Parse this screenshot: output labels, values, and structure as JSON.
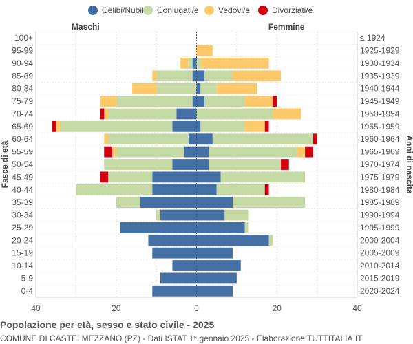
{
  "footer": {
    "title": "Popolazione per età, sesso e stato civile - 2025",
    "subtitle": "COMUNE DI CASTELMEZZANO (PZ) - Dati ISTAT 1° gennaio 2025 - Elaborazione TUTTITALIA.IT"
  },
  "chart_data": {
    "type": "bar",
    "orientation": "horizontal-population-pyramid",
    "left_label": "Maschi",
    "right_label": "Femmine",
    "ylabel_left": "Fasce di età",
    "ylabel_right": "Anni di nascita",
    "xlim": [
      -40,
      40
    ],
    "xticks": [
      -40,
      -20,
      0,
      20,
      40
    ],
    "xtick_labels": [
      "40",
      "20",
      "0",
      "20",
      "40"
    ],
    "grid": true,
    "legend_position": "top",
    "legend": [
      {
        "name": "Celibi/Nubili",
        "color": "#4470a6"
      },
      {
        "name": "Coniugati/e",
        "color": "#c5d9a5"
      },
      {
        "name": "Vedovi/e",
        "color": "#fdc96a"
      },
      {
        "name": "Divorziati/e",
        "color": "#d4000f"
      }
    ],
    "age_groups": [
      "100+",
      "95-99",
      "90-94",
      "85-89",
      "80-84",
      "75-79",
      "70-74",
      "65-69",
      "60-64",
      "55-59",
      "50-54",
      "45-49",
      "40-44",
      "35-39",
      "30-34",
      "25-29",
      "20-24",
      "15-19",
      "10-14",
      "5-9",
      "0-4"
    ],
    "birth_years": [
      "≤ 1924",
      "1925-1929",
      "1930-1934",
      "1935-1939",
      "1940-1944",
      "1945-1949",
      "1950-1954",
      "1955-1959",
      "1960-1964",
      "1965-1969",
      "1970-1974",
      "1975-1979",
      "1980-1984",
      "1985-1989",
      "1990-1994",
      "1995-1999",
      "2000-2004",
      "2005-2009",
      "2010-2014",
      "2015-2019",
      "2020-2024"
    ],
    "males": {
      "celibi": [
        0,
        0,
        1,
        1,
        0,
        1,
        5,
        6,
        2,
        3,
        6,
        11,
        11,
        14,
        9,
        19,
        12,
        11,
        6,
        9,
        11
      ],
      "coniugati": [
        0,
        0,
        1,
        9,
        10,
        19,
        17,
        28,
        20,
        17,
        17,
        11,
        19,
        6,
        1,
        0,
        0,
        0,
        0,
        0,
        0
      ],
      "vedovi": [
        0,
        0,
        2,
        1,
        6,
        4,
        1,
        1,
        1,
        1,
        0,
        0,
        0,
        0,
        0,
        0,
        0,
        0,
        0,
        0,
        0
      ],
      "divorziati": [
        0,
        0,
        0,
        0,
        0,
        0,
        1,
        1,
        0,
        2,
        0,
        2,
        0,
        0,
        0,
        0,
        0,
        0,
        0,
        0,
        0
      ]
    },
    "females": {
      "nubili": [
        0,
        0,
        0,
        2,
        1,
        2,
        0,
        1,
        4,
        3,
        3,
        6,
        5,
        9,
        7,
        12,
        18,
        9,
        11,
        10,
        9
      ],
      "coniugate": [
        0,
        0,
        1,
        7,
        4,
        10,
        19,
        11,
        25,
        22,
        18,
        21,
        12,
        18,
        6,
        1,
        1,
        0,
        0,
        0,
        0
      ],
      "vedove": [
        0,
        4,
        17,
        12,
        10,
        7,
        7,
        5,
        0,
        2,
        0,
        0,
        0,
        0,
        0,
        0,
        0,
        0,
        0,
        0,
        0
      ],
      "divorziate": [
        0,
        0,
        0,
        0,
        0,
        1,
        0,
        1,
        1,
        2,
        2,
        0,
        1,
        0,
        0,
        0,
        0,
        0,
        0,
        0,
        0
      ]
    }
  }
}
